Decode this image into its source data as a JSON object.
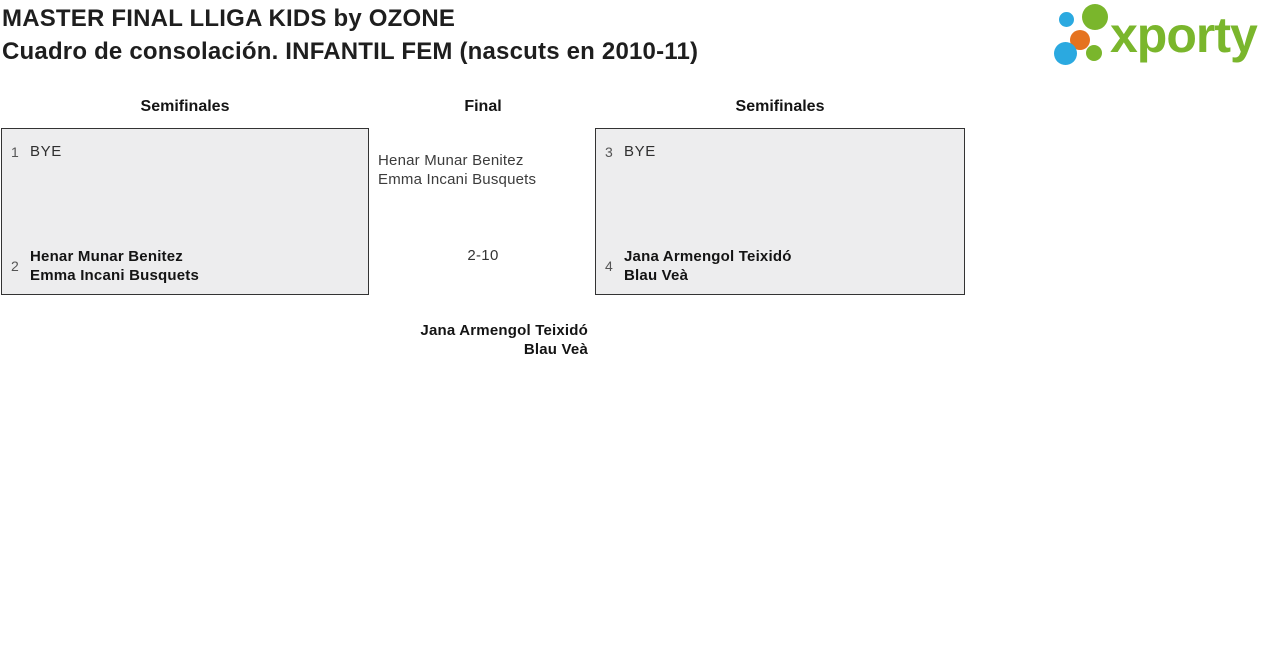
{
  "header": {
    "title_line1": "MASTER FINAL LLIGA KIDS by OZONE",
    "title_line2": "Cuadro de consolación. INFANTIL FEM (nascuts en 2010-11)",
    "logo_text": "xporty"
  },
  "columns": {
    "left_header": "Semifinales",
    "center_header": "Final",
    "right_header": "Semifinales"
  },
  "semifinal_left": {
    "slots": [
      {
        "seed": "1",
        "line1": "BYE"
      },
      {
        "seed": "2",
        "line1": "Henar Munar Benitez",
        "line2": "Emma Incani Busquets"
      }
    ]
  },
  "semifinal_right": {
    "slots": [
      {
        "seed": "3",
        "line1": "BYE"
      },
      {
        "seed": "4",
        "line1": "Jana Armengol Teixidó",
        "line2": "Blau Veà"
      }
    ]
  },
  "final": {
    "entrant_line1": "Henar Munar Benitez",
    "entrant_line2": "Emma Incani Busquets",
    "score": "2-10",
    "winner_line1": "Jana Armengol Teixidó",
    "winner_line2": "Blau Veà"
  },
  "colors": {
    "logo_green": "#7ab62c",
    "logo_blue": "#2ba9e0",
    "logo_orange": "#e5731f",
    "box_background": "#ededee",
    "box_border": "#333333",
    "title_text": "#1e1e1e"
  }
}
